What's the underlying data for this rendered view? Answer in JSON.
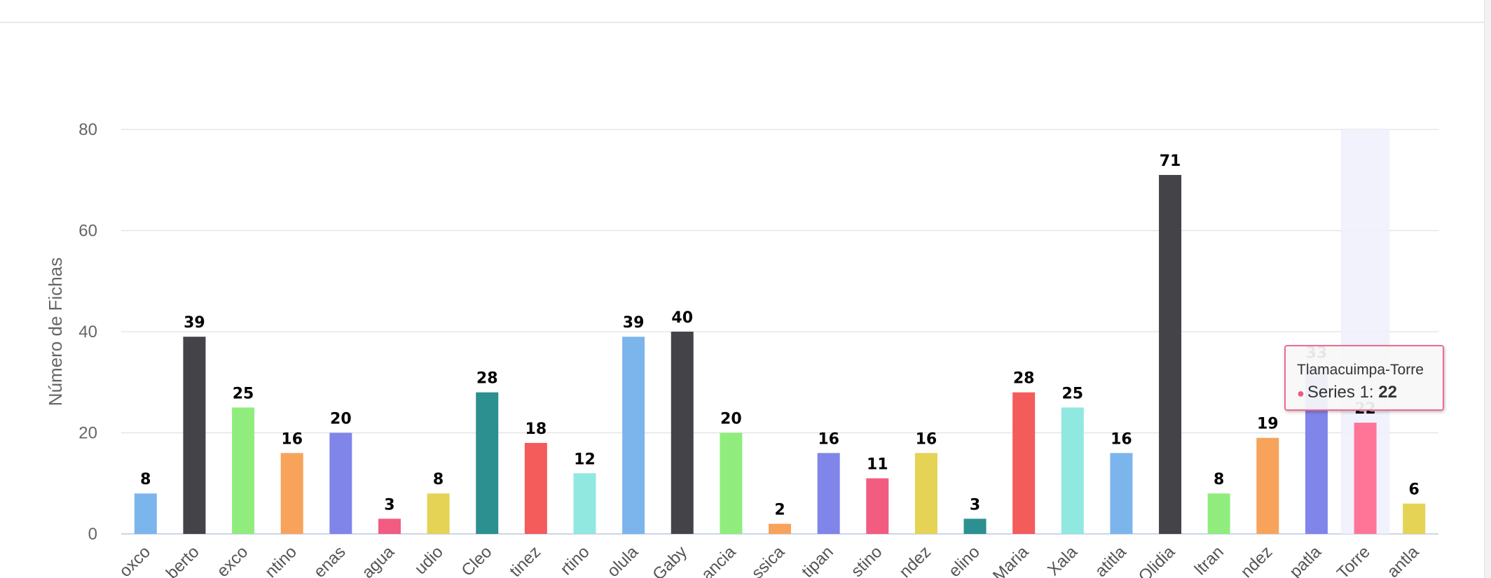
{
  "chart_data": {
    "type": "bar",
    "ylabel": "Número de Fichas",
    "ylim": [
      0,
      80
    ],
    "yticks": [
      0,
      20,
      40,
      60,
      80
    ],
    "grid": true,
    "categories": [
      "oxco",
      "berto",
      "exco",
      "ntino",
      "enas",
      "agua",
      "udio",
      "Cleo",
      "tinez",
      "rtino",
      "olula",
      "Gaby",
      "ancia",
      "ssica",
      "tipan",
      "stino",
      "ndez",
      "elino",
      "Maria",
      "Xala",
      "atitla",
      "Olidia",
      "ltran",
      "ndez",
      "patla",
      "Torre",
      "antla"
    ],
    "series": [
      {
        "values": [
          8,
          39,
          25,
          16,
          20,
          3,
          8,
          28,
          18,
          12,
          39,
          40,
          20,
          2,
          16,
          11,
          16,
          3,
          28,
          25,
          16,
          71,
          8,
          19,
          33,
          22,
          6
        ]
      }
    ],
    "colors": [
      "#7cb5ec",
      "#434348",
      "#90ed7d",
      "#f7a35c",
      "#8085e9",
      "#f15c80",
      "#e4d354",
      "#2b908f",
      "#f45b5b",
      "#91e8e1",
      "#7cb5ec",
      "#434348",
      "#90ed7d",
      "#f7a35c",
      "#8085e9",
      "#f15c80",
      "#e4d354",
      "#2b908f",
      "#f45b5b",
      "#91e8e1",
      "#7cb5ec",
      "#434348",
      "#90ed7d",
      "#f7a35c",
      "#8085e9",
      "#ff7597",
      "#e4d354"
    ],
    "hovered_index": 25
  },
  "tooltip": {
    "title": "Tlamacuimpa-Torre",
    "series_label": "Series 1: ",
    "value": "22"
  }
}
